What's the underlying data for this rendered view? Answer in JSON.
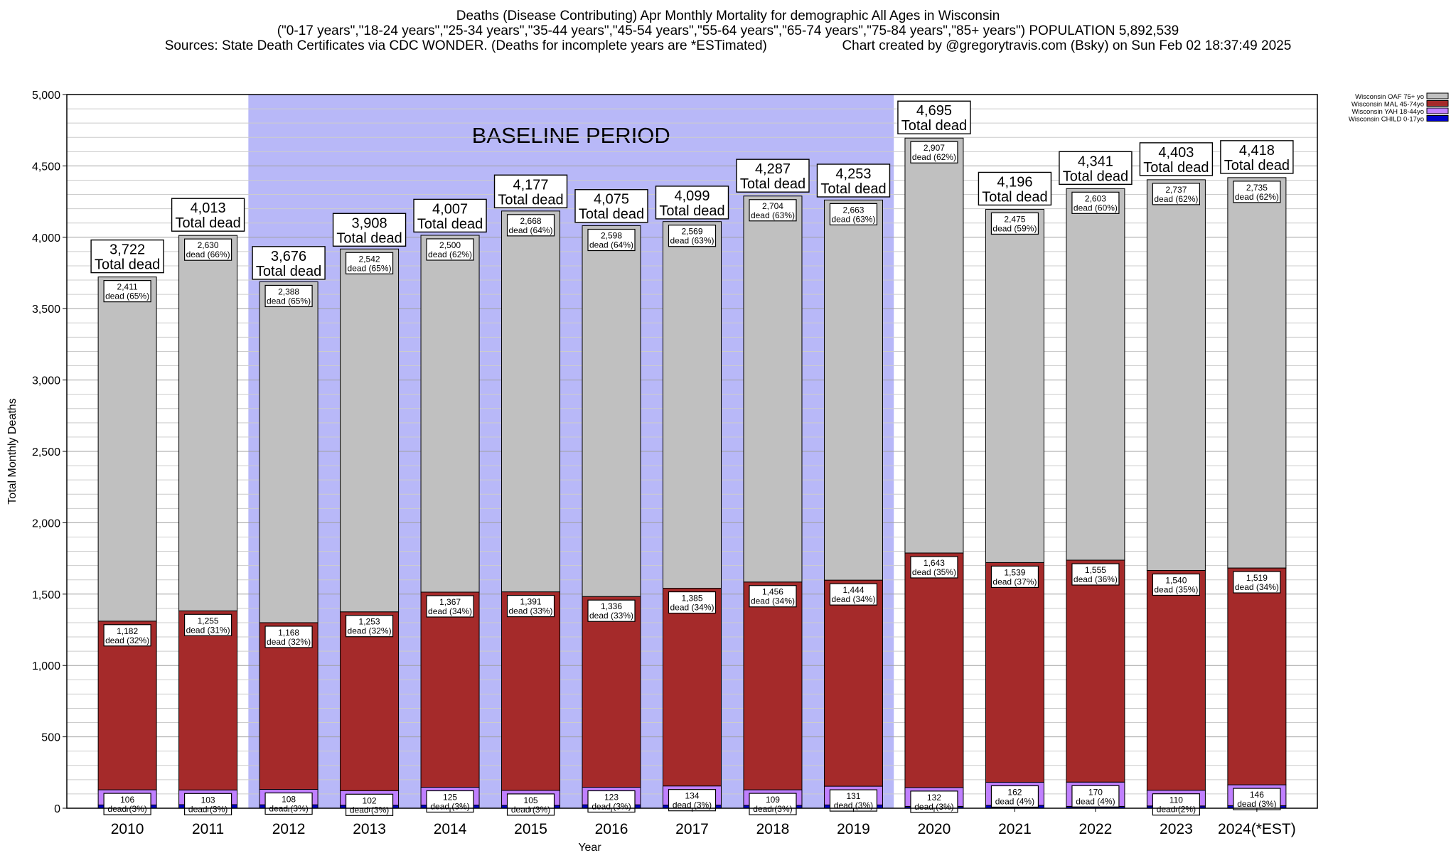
{
  "header": {
    "title": "Deaths (Disease Contributing) Apr Monthly Mortality for demographic All Ages in Wisconsin",
    "subtitle": "(\"0-17 years\",\"18-24 years\",\"25-34 years\",\"35-44 years\",\"45-54 years\",\"55-64 years\",\"65-74 years\",\"75-84 years\",\"85+ years\") POPULATION 5,892,539",
    "sources": "Sources: State Death Certificates via CDC WONDER. (Deaths for incomplete years are *ESTimated)",
    "credit": "Chart created by @gregorytravis.com (Bsky) on Sun Feb 02 18:37:49 2025"
  },
  "chart_data": {
    "type": "bar",
    "stacked": true,
    "xlabel": "Year",
    "ylabel": "Total Monthly Deaths",
    "ylim": [
      0,
      5000
    ],
    "yticks": [
      0,
      500,
      1000,
      1500,
      2000,
      2500,
      3000,
      3500,
      4000,
      4500,
      5000
    ],
    "ytick_labels": [
      "0",
      "500",
      "1,000",
      "1,500",
      "2,000",
      "2,500",
      "3,000",
      "3,500",
      "4,000",
      "4,500",
      "5,000"
    ],
    "categories": [
      "2010",
      "2011",
      "2012",
      "2013",
      "2014",
      "2015",
      "2016",
      "2017",
      "2018",
      "2019",
      "2020",
      "2021",
      "2022",
      "2023",
      "2024(*EST)"
    ],
    "totals": [
      3722,
      4013,
      3676,
      3908,
      4007,
      4177,
      4075,
      4099,
      4287,
      4253,
      4695,
      4196,
      4341,
      4403,
      4418
    ],
    "totals_labels": [
      "3,722",
      "4,013",
      "3,676",
      "3,908",
      "4,007",
      "4,177",
      "4,075",
      "4,099",
      "4,287",
      "4,253",
      "4,695",
      "4,196",
      "4,341",
      "4,403",
      "4,418"
    ],
    "total_suffix": "Total dead",
    "dead_word": "dead",
    "series": [
      {
        "name": "Wisconsin CHILD 0-17yo",
        "color": "#0000cc",
        "values": [
          23,
          25,
          24,
          21,
          22,
          20,
          24,
          22,
          20,
          23,
          13,
          20,
          13,
          16,
          18
        ]
      },
      {
        "name": "Wisconsin YAH 18-44yo",
        "color": "#c080ff",
        "values": [
          106,
          103,
          108,
          102,
          125,
          105,
          123,
          134,
          109,
          131,
          132,
          162,
          170,
          110,
          146
        ],
        "labels": [
          "106",
          "103",
          "108",
          "102",
          "125",
          "105",
          "123",
          "134",
          "109",
          "131",
          "132",
          "162",
          "170",
          "110",
          "146"
        ],
        "pcts": [
          "(3%)",
          "(3%)",
          "(3%)",
          "(3%)",
          "(3%)",
          "(3%)",
          "(3%)",
          "(3%)",
          "(3%)",
          "(3%)",
          "(3%)",
          "(4%)",
          "(4%)",
          "(2%)",
          "(3%)"
        ]
      },
      {
        "name": "Wisconsin MAL 45-74yo",
        "color": "#a52a2a",
        "values": [
          1182,
          1255,
          1168,
          1253,
          1367,
          1391,
          1336,
          1385,
          1456,
          1444,
          1643,
          1539,
          1555,
          1540,
          1519
        ],
        "labels": [
          "1,182",
          "1,255",
          "1,168",
          "1,253",
          "1,367",
          "1,391",
          "1,336",
          "1,385",
          "1,456",
          "1,444",
          "1,643",
          "1,539",
          "1,555",
          "1,540",
          "1,519"
        ],
        "pcts": [
          "(32%)",
          "(31%)",
          "(32%)",
          "(32%)",
          "(34%)",
          "(33%)",
          "(33%)",
          "(34%)",
          "(34%)",
          "(34%)",
          "(35%)",
          "(37%)",
          "(36%)",
          "(35%)",
          "(34%)"
        ]
      },
      {
        "name": "Wisconsin OAF 75+ yo",
        "color": "#c0c0c0",
        "values": [
          2411,
          2630,
          2388,
          2542,
          2500,
          2668,
          2598,
          2569,
          2704,
          2663,
          2907,
          2475,
          2603,
          2737,
          2735
        ],
        "labels": [
          "2,411",
          "2,630",
          "2,388",
          "2,542",
          "2,500",
          "2,668",
          "2,598",
          "2,569",
          "2,704",
          "2,663",
          "2,907",
          "2,475",
          "2,603",
          "2,737",
          "2,735"
        ],
        "pcts": [
          "(65%)",
          "(66%)",
          "(65%)",
          "(65%)",
          "(62%)",
          "(64%)",
          "(64%)",
          "(63%)",
          "(63%)",
          "(63%)",
          "(62%)",
          "(59%)",
          "(60%)",
          "(62%)",
          "(62%)"
        ]
      }
    ],
    "legend_order": [
      "Wisconsin OAF 75+ yo",
      "Wisconsin MAL 45-74yo",
      "Wisconsin YAH 18-44yo",
      "Wisconsin CHILD 0-17yo"
    ],
    "legend_position": "top-right",
    "annotation": {
      "text": "BASELINE PERIOD",
      "from_category": "2012",
      "to_category": "2019",
      "color": "#b8b8f8"
    },
    "grid": true
  }
}
